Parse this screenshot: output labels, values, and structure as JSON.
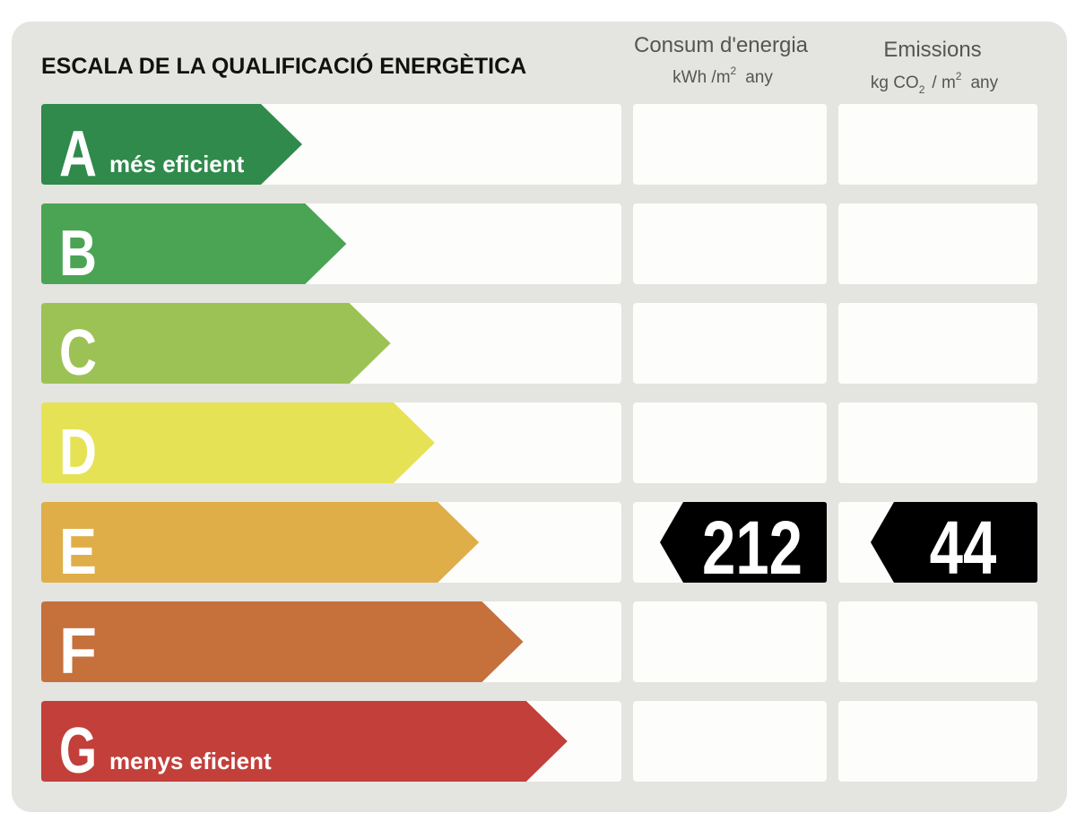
{
  "title": "ESCALA DE LA QUALIFICACIÓ ENERGÈTICA",
  "columns": [
    {
      "title": "Consum d'energia",
      "unit": [
        "kWh /m",
        "2",
        "any"
      ]
    },
    {
      "title": "Emissions",
      "unit": [
        "kg CO",
        "2",
        "/ m",
        "2",
        "any"
      ]
    }
  ],
  "rows": [
    {
      "letter": "A",
      "label": "més eficient",
      "color": "#2f8a4b"
    },
    {
      "letter": "B",
      "color": "#4aa453"
    },
    {
      "letter": "C",
      "color": "#9cc255"
    },
    {
      "letter": "D",
      "color": "#e6e255"
    },
    {
      "letter": "E",
      "color": "#dfae48",
      "consumption": 212,
      "emissions": 44
    },
    {
      "letter": "F",
      "color": "#c6703c"
    },
    {
      "letter": "G",
      "label": "menys eficient",
      "color": "#c23f3a"
    }
  ]
}
